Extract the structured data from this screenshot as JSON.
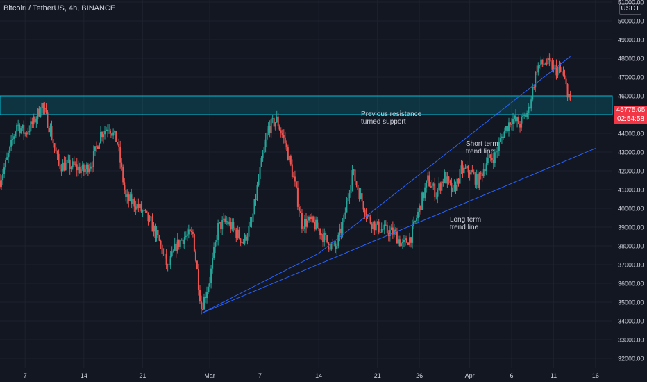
{
  "header": {
    "symbol": "Bitcoin / TetherUS, 4h, BINANCE",
    "currency": "USDT"
  },
  "last_price": {
    "value": "45775.05",
    "countdown": "02:54:58",
    "color": "#f23645"
  },
  "colors": {
    "background": "#131722",
    "up": "#26a69a",
    "down": "#ef5350",
    "trend": "#2962ff",
    "zone": "#00bcd4",
    "grid": "#1e222d",
    "text": "#d1d4dc"
  },
  "chart_data": {
    "type": "candlestick",
    "title": "Bitcoin / TetherUS, 4h, BINANCE",
    "ylim": [
      32000,
      51700
    ],
    "x_range": [
      "2021-02-04",
      "2021-04-18"
    ],
    "y_ticks": [
      "51000.00",
      "50000.00",
      "49000.00",
      "48000.00",
      "47000.00",
      "46000.00",
      "45000.00",
      "44000.00",
      "43000.00",
      "42000.00",
      "41000.00",
      "40000.00",
      "39000.00",
      "38000.00",
      "37000.00",
      "36000.00",
      "35000.00",
      "34000.00",
      "33000.00",
      "32000.00"
    ],
    "x_ticks": [
      {
        "label": "7",
        "date": "2021-02-07"
      },
      {
        "label": "14",
        "date": "2021-02-14"
      },
      {
        "label": "21",
        "date": "2021-02-21"
      },
      {
        "label": "Mar",
        "date": "2021-03-01"
      },
      {
        "label": "7",
        "date": "2021-03-07"
      },
      {
        "label": "14",
        "date": "2021-03-14"
      },
      {
        "label": "21",
        "date": "2021-03-21"
      },
      {
        "label": "26",
        "date": "2021-03-26"
      },
      {
        "label": "Apr",
        "date": "2021-04-01"
      },
      {
        "label": "6",
        "date": "2021-04-06"
      },
      {
        "label": "11",
        "date": "2021-04-11"
      },
      {
        "label": "16",
        "date": "2021-04-16"
      }
    ],
    "price_path": [
      [
        "2021-02-04",
        41500
      ],
      [
        "2021-02-05",
        42800
      ],
      [
        "2021-02-06",
        44500
      ],
      [
        "2021-02-07",
        44000
      ],
      [
        "2021-02-08",
        44600
      ],
      [
        "2021-02-09",
        45500
      ],
      [
        "2021-02-10",
        44200
      ],
      [
        "2021-02-11",
        42300
      ],
      [
        "2021-02-12",
        42300
      ],
      [
        "2021-02-13",
        42200
      ],
      [
        "2021-02-14",
        42000
      ],
      [
        "2021-02-15",
        42500
      ],
      [
        "2021-02-16",
        44000
      ],
      [
        "2021-02-17",
        44400
      ],
      [
        "2021-02-18",
        43500
      ],
      [
        "2021-02-19",
        40500
      ],
      [
        "2021-02-20",
        40300
      ],
      [
        "2021-02-21",
        39800
      ],
      [
        "2021-02-22",
        39200
      ],
      [
        "2021-02-23",
        38200
      ],
      [
        "2021-02-24",
        36800
      ],
      [
        "2021-02-25",
        38000
      ],
      [
        "2021-02-26",
        38500
      ],
      [
        "2021-02-27",
        38600
      ],
      [
        "2021-02-28",
        34700
      ],
      [
        "2021-03-01",
        36200
      ],
      [
        "2021-03-02",
        39000
      ],
      [
        "2021-03-03",
        39300
      ],
      [
        "2021-03-04",
        38800
      ],
      [
        "2021-03-05",
        38200
      ],
      [
        "2021-03-06",
        39200
      ],
      [
        "2021-03-07",
        42000
      ],
      [
        "2021-03-08",
        44300
      ],
      [
        "2021-03-09",
        44700
      ],
      [
        "2021-03-10",
        43500
      ],
      [
        "2021-03-11",
        41600
      ],
      [
        "2021-03-12",
        39200
      ],
      [
        "2021-03-13",
        39300
      ],
      [
        "2021-03-14",
        38900
      ],
      [
        "2021-03-15",
        38200
      ],
      [
        "2021-03-16",
        37800
      ],
      [
        "2021-03-17",
        39400
      ],
      [
        "2021-03-18",
        42000
      ],
      [
        "2021-03-19",
        40600
      ],
      [
        "2021-03-20",
        39400
      ],
      [
        "2021-03-21",
        39000
      ],
      [
        "2021-03-22",
        38800
      ],
      [
        "2021-03-23",
        38700
      ],
      [
        "2021-03-24",
        38000
      ],
      [
        "2021-03-25",
        38500
      ],
      [
        "2021-03-26",
        40000
      ],
      [
        "2021-03-27",
        41500
      ],
      [
        "2021-03-28",
        40800
      ],
      [
        "2021-03-29",
        41700
      ],
      [
        "2021-03-30",
        40800
      ],
      [
        "2021-03-31",
        42000
      ],
      [
        "2021-04-01",
        42000
      ],
      [
        "2021-04-02",
        41400
      ],
      [
        "2021-04-03",
        42500
      ],
      [
        "2021-04-04",
        42800
      ],
      [
        "2021-04-05",
        44000
      ],
      [
        "2021-04-06",
        44800
      ],
      [
        "2021-04-07",
        44500
      ],
      [
        "2021-04-08",
        45200
      ],
      [
        "2021-04-09",
        47500
      ],
      [
        "2021-04-10",
        47800
      ],
      [
        "2021-04-11",
        47500
      ],
      [
        "2021-04-12",
        47200
      ],
      [
        "2021-04-13",
        45775
      ]
    ],
    "zone": {
      "top": 46000,
      "bottom": 45000,
      "label": [
        "Previous resistance",
        "turned support"
      ]
    },
    "trendlines": [
      {
        "label": [
          "Short term",
          "trend line"
        ],
        "from": [
          "2021-03-14",
          37600
        ],
        "to": [
          "2021-04-13",
          48100
        ]
      },
      {
        "label": [
          "Long term",
          "trend line"
        ],
        "from": [
          "2021-02-28",
          34400
        ],
        "to": [
          "2021-04-16",
          43200
        ]
      },
      {
        "label": [],
        "from": [
          "2021-02-28",
          34400
        ],
        "to": [
          "2021-03-14",
          37600
        ]
      }
    ],
    "grid": true,
    "legend": "none"
  }
}
